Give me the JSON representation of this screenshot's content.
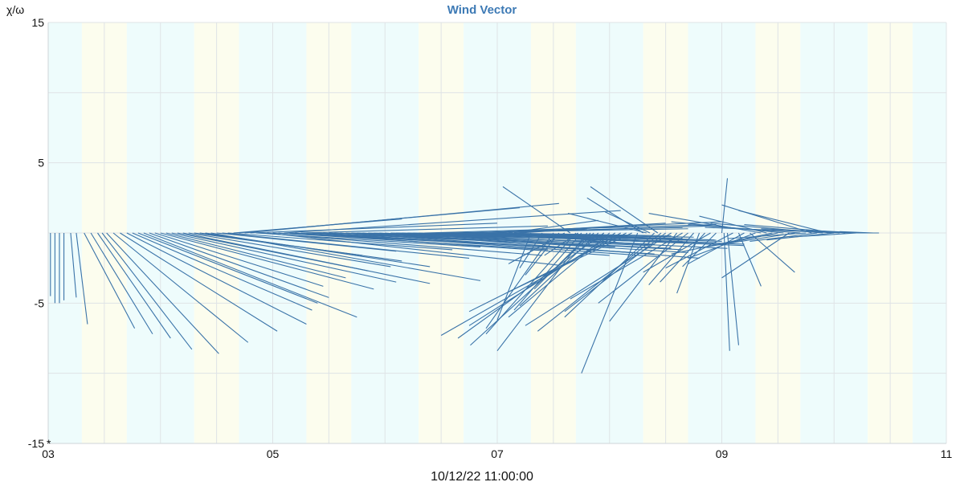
{
  "chart_data": {
    "type": "vector",
    "title": "Wind Vector",
    "ylabel": "χ/ω",
    "xcaption": "10/12/22 11:00:00",
    "origin_marker": "*",
    "x_ticks": [
      "03",
      "05",
      "07",
      "09",
      "11"
    ],
    "x_range": [
      3,
      11
    ],
    "y_ticks": [
      15,
      5,
      -5,
      -15
    ],
    "y_range": [
      -15,
      15
    ],
    "y_grid": [
      15,
      10,
      5,
      0,
      -5,
      -10,
      -15
    ],
    "x_grid_step": 0.5,
    "band_colors": [
      "#eefcfc",
      "#fcfdee",
      "#eefcfc"
    ],
    "bands": [
      {
        "start": 3.0,
        "end": 3.3,
        "tone": 0
      },
      {
        "start": 3.3,
        "end": 3.7,
        "tone": 1
      },
      {
        "start": 3.7,
        "end": 4.3,
        "tone": 2
      },
      {
        "start": 4.3,
        "end": 4.7,
        "tone": 1
      },
      {
        "start": 4.7,
        "end": 5.3,
        "tone": 2
      },
      {
        "start": 5.3,
        "end": 5.7,
        "tone": 1
      },
      {
        "start": 5.7,
        "end": 6.3,
        "tone": 2
      },
      {
        "start": 6.3,
        "end": 6.7,
        "tone": 1
      },
      {
        "start": 6.7,
        "end": 7.3,
        "tone": 2
      },
      {
        "start": 7.3,
        "end": 7.7,
        "tone": 1
      },
      {
        "start": 7.7,
        "end": 8.3,
        "tone": 2
      },
      {
        "start": 8.3,
        "end": 8.7,
        "tone": 1
      },
      {
        "start": 8.7,
        "end": 9.3,
        "tone": 2
      },
      {
        "start": 9.3,
        "end": 9.7,
        "tone": 1
      },
      {
        "start": 9.7,
        "end": 10.3,
        "tone": 2
      },
      {
        "start": 10.3,
        "end": 10.7,
        "tone": 1
      },
      {
        "start": 10.7,
        "end": 11.0,
        "tone": 2
      }
    ],
    "series_color": "#3a73a8",
    "title_color": "#3d7ab5",
    "vectors": [
      {
        "x": 3.02,
        "u": 0.0,
        "v": -4.5
      },
      {
        "x": 3.06,
        "u": 0.0,
        "v": -5.0
      },
      {
        "x": 3.1,
        "u": 0.0,
        "v": -5.0
      },
      {
        "x": 3.14,
        "u": 0.0,
        "v": -4.8
      },
      {
        "x": 3.2,
        "u": 0.05,
        "v": -4.6
      },
      {
        "x": 3.25,
        "u": 0.1,
        "v": -6.5
      },
      {
        "x": 3.32,
        "u": 0.45,
        "v": -6.8
      },
      {
        "x": 3.38,
        "u": 0.55,
        "v": -7.2
      },
      {
        "x": 3.44,
        "u": 0.65,
        "v": -7.5
      },
      {
        "x": 3.48,
        "u": 0.8,
        "v": -8.3
      },
      {
        "x": 3.52,
        "u": 1.0,
        "v": -8.6
      },
      {
        "x": 3.58,
        "u": 1.2,
        "v": -7.8
      },
      {
        "x": 3.64,
        "u": 1.4,
        "v": -7.0
      },
      {
        "x": 3.7,
        "u": 1.6,
        "v": -6.5
      },
      {
        "x": 3.75,
        "u": 1.6,
        "v": -5.5
      },
      {
        "x": 3.8,
        "u": 1.6,
        "v": -5.0
      },
      {
        "x": 3.85,
        "u": 1.9,
        "v": -6.0
      },
      {
        "x": 3.9,
        "u": 1.6,
        "v": -4.6
      },
      {
        "x": 3.95,
        "u": 1.5,
        "v": -3.8
      },
      {
        "x": 4.0,
        "u": 1.9,
        "v": -4.0
      },
      {
        "x": 4.05,
        "u": 1.6,
        "v": -3.2
      },
      {
        "x": 4.1,
        "u": 2.0,
        "v": -3.5
      },
      {
        "x": 4.15,
        "u": 1.7,
        "v": -2.7
      },
      {
        "x": 4.2,
        "u": 2.2,
        "v": -3.6
      },
      {
        "x": 4.25,
        "u": 1.8,
        "v": -2.4
      },
      {
        "x": 4.3,
        "u": 1.5,
        "v": -1.6
      },
      {
        "x": 4.35,
        "u": 1.8,
        "v": -2.0
      },
      {
        "x": 4.4,
        "u": 2.0,
        "v": -2.4
      },
      {
        "x": 4.45,
        "u": 2.4,
        "v": -3.4
      },
      {
        "x": 4.5,
        "u": 1.6,
        "v": -1.3
      },
      {
        "x": 4.55,
        "u": 2.2,
        "v": -1.8
      },
      {
        "x": 4.6,
        "u": 2.0,
        "v": -1.2
      },
      {
        "x": 4.65,
        "u": 1.5,
        "v": 1.0
      },
      {
        "x": 4.7,
        "u": 2.5,
        "v": 1.8
      },
      {
        "x": 4.75,
        "u": 2.8,
        "v": 2.1
      },
      {
        "x": 4.8,
        "u": 2.2,
        "v": 0.7
      },
      {
        "x": 4.85,
        "u": 2.0,
        "v": -1.0
      },
      {
        "x": 4.9,
        "u": 2.5,
        "v": -1.6
      },
      {
        "x": 4.95,
        "u": 2.6,
        "v": -2.3
      },
      {
        "x": 5.0,
        "u": 2.0,
        "v": -0.8
      },
      {
        "x": 5.05,
        "u": 2.4,
        "v": -1.2
      },
      {
        "x": 5.1,
        "u": 3.0,
        "v": 1.6
      },
      {
        "x": 5.15,
        "u": 2.6,
        "v": -1.1
      },
      {
        "x": 5.2,
        "u": 2.8,
        "v": -1.6
      },
      {
        "x": 5.25,
        "u": 2.2,
        "v": 0.5
      },
      {
        "x": 5.3,
        "u": 2.6,
        "v": -1.2
      },
      {
        "x": 5.35,
        "u": 2.5,
        "v": -0.9
      },
      {
        "x": 5.4,
        "u": 2.8,
        "v": -1.4
      },
      {
        "x": 5.45,
        "u": 3.0,
        "v": -1.7
      },
      {
        "x": 5.5,
        "u": 2.4,
        "v": -0.6
      },
      {
        "x": 5.55,
        "u": 2.5,
        "v": -1.0
      },
      {
        "x": 5.6,
        "u": 2.8,
        "v": -1.5
      },
      {
        "x": 5.65,
        "u": 2.9,
        "v": -1.1
      },
      {
        "x": 5.7,
        "u": 2.4,
        "v": -0.5
      },
      {
        "x": 5.75,
        "u": 2.6,
        "v": -0.9
      },
      {
        "x": 5.8,
        "u": 2.9,
        "v": -1.4
      },
      {
        "x": 5.85,
        "u": 2.8,
        "v": -0.6
      },
      {
        "x": 5.9,
        "u": 2.5,
        "v": -0.8
      },
      {
        "x": 5.95,
        "u": 2.7,
        "v": -1.2
      },
      {
        "x": 6.0,
        "u": 2.8,
        "v": -1.8
      },
      {
        "x": 6.05,
        "u": 2.4,
        "v": -0.4
      },
      {
        "x": 6.1,
        "u": 2.6,
        "v": -0.7
      },
      {
        "x": 6.15,
        "u": 2.9,
        "v": -1.1
      },
      {
        "x": 6.2,
        "u": 2.5,
        "v": -0.3
      },
      {
        "x": 6.25,
        "u": 2.7,
        "v": -0.8
      },
      {
        "x": 6.3,
        "u": 2.4,
        "v": -0.5
      },
      {
        "x": 6.35,
        "u": 2.6,
        "v": 0.6
      },
      {
        "x": 6.4,
        "u": 2.8,
        "v": -0.9
      },
      {
        "x": 6.45,
        "u": 2.5,
        "v": -0.7
      },
      {
        "x": 6.5,
        "u": 2.2,
        "v": 0.3
      },
      {
        "x": 6.55,
        "u": 2.4,
        "v": -0.5
      },
      {
        "x": 6.6,
        "u": 2.6,
        "v": -0.8
      },
      {
        "x": 6.65,
        "u": 2.0,
        "v": 0.4
      },
      {
        "x": 6.7,
        "u": 2.3,
        "v": -0.6
      },
      {
        "x": 6.75,
        "u": 2.0,
        "v": -0.3
      },
      {
        "x": 6.8,
        "u": 2.2,
        "v": 0.8
      },
      {
        "x": 6.85,
        "u": 1.8,
        "v": -0.4
      },
      {
        "x": 6.9,
        "u": 2.0,
        "v": 0.5
      },
      {
        "x": 6.95,
        "u": 1.6,
        "v": -0.2
      },
      {
        "x": 7.0,
        "u": 1.5,
        "v": 0.7
      },
      {
        "x": 7.05,
        "u": 1.2,
        "v": -0.8
      },
      {
        "x": 7.1,
        "u": 0.8,
        "v": 0.9
      },
      {
        "x": 7.15,
        "u": 1.0,
        "v": 0.5
      },
      {
        "x": 7.2,
        "u": 0.6,
        "v": 0.3
      },
      {
        "x": 7.3,
        "u": -0.3,
        "v": -6.2
      },
      {
        "x": 7.4,
        "u": -0.2,
        "v": -2.5
      },
      {
        "x": 7.5,
        "u": -0.6,
        "v": -6.8
      },
      {
        "x": 7.55,
        "u": -0.3,
        "v": -3.0
      },
      {
        "x": 7.6,
        "u": -0.5,
        "v": -2.2
      },
      {
        "x": 7.65,
        "u": -0.6,
        "v": 3.3
      },
      {
        "x": 7.7,
        "u": -0.8,
        "v": -7.2
      },
      {
        "x": 7.72,
        "u": -0.3,
        "v": -1.6
      },
      {
        "x": 7.75,
        "u": -0.6,
        "v": -5.5
      },
      {
        "x": 7.8,
        "u": -0.8,
        "v": -8.4
      },
      {
        "x": 7.83,
        "u": -0.5,
        "v": -4.0
      },
      {
        "x": 7.86,
        "u": -1.1,
        "v": -8.0
      },
      {
        "x": 7.9,
        "u": -0.7,
        "v": -5.2
      },
      {
        "x": 7.95,
        "u": -1.3,
        "v": -7.5
      },
      {
        "x": 8.0,
        "u": -0.9,
        "v": -6.0
      },
      {
        "x": 8.05,
        "u": -1.3,
        "v": -6.6
      },
      {
        "x": 8.1,
        "u": -1.6,
        "v": -7.3
      },
      {
        "x": 8.15,
        "u": -1.4,
        "v": -5.6
      },
      {
        "x": 8.2,
        "u": -1.1,
        "v": -4.2
      },
      {
        "x": 8.25,
        "u": -0.5,
        "v": -10.0
      },
      {
        "x": 8.3,
        "u": -0.5,
        "v": 2.5
      },
      {
        "x": 8.33,
        "u": -0.7,
        "v": 1.4
      },
      {
        "x": 8.36,
        "u": -0.4,
        "v": 1.5
      },
      {
        "x": 8.4,
        "u": -0.8,
        "v": -6.0
      },
      {
        "x": 8.43,
        "u": -0.6,
        "v": 3.3
      },
      {
        "x": 8.46,
        "u": -1.1,
        "v": -7.0
      },
      {
        "x": 8.5,
        "u": -0.9,
        "v": -5.6
      },
      {
        "x": 8.55,
        "u": -1.3,
        "v": -6.6
      },
      {
        "x": 8.6,
        "u": -0.6,
        "v": -6.3
      },
      {
        "x": 8.65,
        "u": -1.0,
        "v": -4.7
      },
      {
        "x": 8.7,
        "u": -0.8,
        "v": -5.0
      },
      {
        "x": 8.75,
        "u": -0.4,
        "v": -3.7
      },
      {
        "x": 8.8,
        "u": -0.2,
        "v": -4.3
      },
      {
        "x": 8.85,
        "u": -0.4,
        "v": -3.5
      },
      {
        "x": 8.9,
        "u": -0.6,
        "v": -2.8
      },
      {
        "x": 8.95,
        "u": -0.3,
        "v": -2.4
      },
      {
        "x": 9.0,
        "u": 0.05,
        "v": 3.9
      },
      {
        "x": 9.02,
        "u": 0.05,
        "v": -8.4
      },
      {
        "x": 9.05,
        "u": 0.1,
        "v": -8.0
      },
      {
        "x": 9.1,
        "u": -0.6,
        "v": -2.5
      },
      {
        "x": 9.15,
        "u": 0.2,
        "v": -3.8
      },
      {
        "x": 9.2,
        "u": -0.5,
        "v": -2.2
      },
      {
        "x": 9.25,
        "u": 0.4,
        "v": -2.8
      },
      {
        "x": 9.3,
        "u": -0.6,
        "v": -1.8
      },
      {
        "x": 9.35,
        "u": -1.0,
        "v": 1.4
      },
      {
        "x": 9.4,
        "u": -0.6,
        "v": 1.2
      },
      {
        "x": 9.45,
        "u": -0.9,
        "v": -1.5
      },
      {
        "x": 9.5,
        "u": -0.5,
        "v": -0.8
      },
      {
        "x": 9.55,
        "u": -1.0,
        "v": 0.8
      },
      {
        "x": 9.6,
        "u": -0.6,
        "v": -3.2
      },
      {
        "x": 9.65,
        "u": -0.8,
        "v": -1.0
      },
      {
        "x": 9.7,
        "u": -1.0,
        "v": 0.6
      },
      {
        "x": 9.75,
        "u": -0.7,
        "v": -0.4
      },
      {
        "x": 9.8,
        "u": -0.8,
        "v": 2.0
      },
      {
        "x": 9.85,
        "u": -0.6,
        "v": -0.6
      },
      {
        "x": 9.9,
        "u": -1.0,
        "v": 0.7
      },
      {
        "x": 9.95,
        "u": -0.8,
        "v": 1.6
      },
      {
        "x": 10.0,
        "u": -0.6,
        "v": -0.5
      },
      {
        "x": 10.05,
        "u": -1.2,
        "v": 0.4
      },
      {
        "x": 10.1,
        "u": -0.9,
        "v": 0.6
      },
      {
        "x": 10.15,
        "u": -0.8,
        "v": 0.3
      },
      {
        "x": 10.2,
        "u": -0.6,
        "v": -0.3
      },
      {
        "x": 10.25,
        "u": -0.5,
        "v": 0.2
      },
      {
        "x": 10.3,
        "u": -0.4,
        "v": 0.1
      },
      {
        "x": 10.35,
        "u": -0.3,
        "v": 0.1
      },
      {
        "x": 10.4,
        "u": -0.2,
        "v": 0.0
      }
    ]
  }
}
